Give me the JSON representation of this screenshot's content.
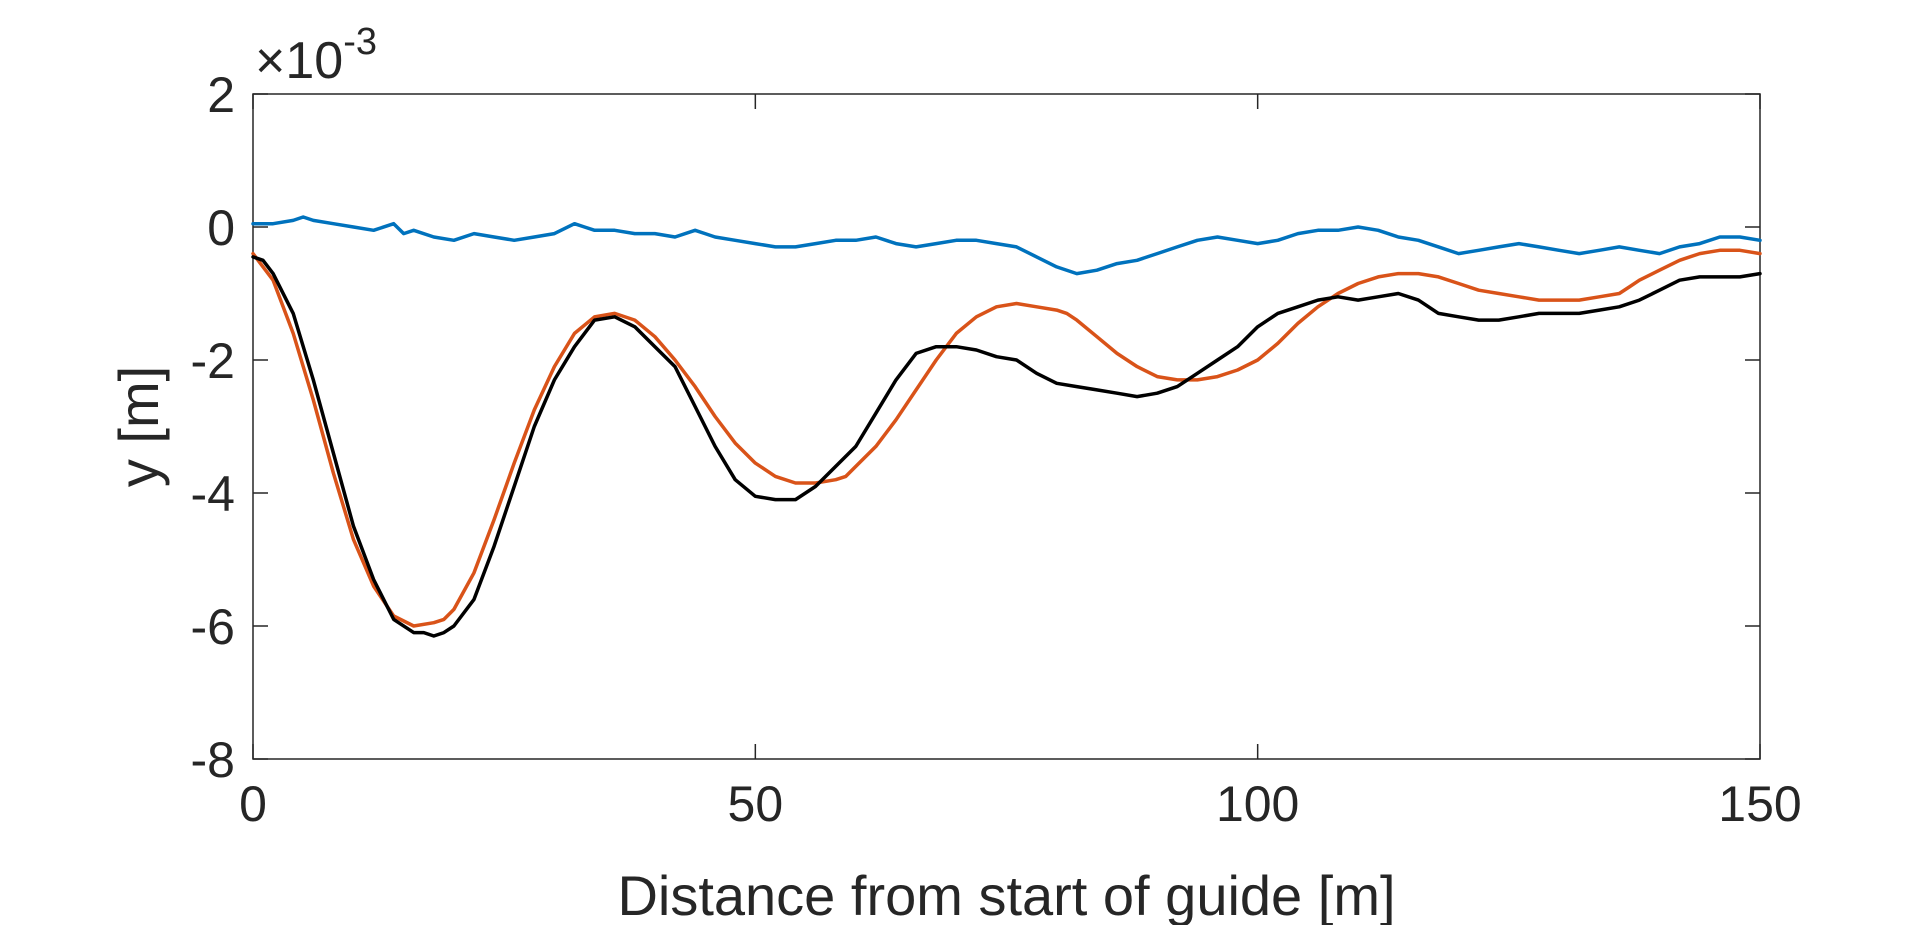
{
  "chart_data": {
    "type": "line",
    "xlabel": "Distance from start of guide [m]",
    "ylabel": "y [m]",
    "y_exponent_label": {
      "base": "×10",
      "exponent": "-3"
    },
    "xlim": [
      0,
      150
    ],
    "ylim": [
      -8,
      2
    ],
    "xticks": [
      "0",
      "50",
      "100",
      "150"
    ],
    "yticks": [
      "-8",
      "-6",
      "-4",
      "-2",
      "0",
      "2"
    ],
    "grid": false,
    "box": true,
    "series": [
      {
        "color": "#0072BD",
        "x": [
          0,
          2,
          4,
          5,
          6,
          8,
          10,
          12,
          14,
          15,
          16,
          18,
          20,
          22,
          24,
          26,
          28,
          30,
          32,
          33,
          34,
          36,
          38,
          40,
          42,
          44,
          45,
          46,
          48,
          50,
          52,
          54,
          56,
          58,
          60,
          62,
          64,
          66,
          68,
          70,
          72,
          74,
          76,
          78,
          80,
          82,
          84,
          86,
          88,
          90,
          92,
          94,
          96,
          98,
          100,
          102,
          104,
          106,
          108,
          110,
          112,
          114,
          116,
          118,
          120,
          122,
          124,
          126,
          128,
          130,
          132,
          134,
          136,
          138,
          140,
          142,
          144,
          146,
          148,
          150
        ],
        "y": [
          0.05,
          0.05,
          0.1,
          0.15,
          0.1,
          0.05,
          0.0,
          -0.05,
          0.05,
          -0.1,
          -0.05,
          -0.15,
          -0.2,
          -0.1,
          -0.15,
          -0.2,
          -0.15,
          -0.1,
          0.05,
          0.0,
          -0.05,
          -0.05,
          -0.1,
          -0.1,
          -0.15,
          -0.05,
          -0.1,
          -0.15,
          -0.2,
          -0.25,
          -0.3,
          -0.3,
          -0.25,
          -0.2,
          -0.2,
          -0.15,
          -0.25,
          -0.3,
          -0.25,
          -0.2,
          -0.2,
          -0.25,
          -0.3,
          -0.45,
          -0.6,
          -0.7,
          -0.65,
          -0.55,
          -0.5,
          -0.4,
          -0.3,
          -0.2,
          -0.15,
          -0.2,
          -0.25,
          -0.2,
          -0.1,
          -0.05,
          -0.05,
          0.0,
          -0.05,
          -0.15,
          -0.2,
          -0.3,
          -0.4,
          -0.35,
          -0.3,
          -0.25,
          -0.3,
          -0.35,
          -0.4,
          -0.35,
          -0.3,
          -0.35,
          -0.4,
          -0.3,
          -0.25,
          -0.15,
          -0.15,
          -0.2
        ]
      },
      {
        "color": "#D95319",
        "x": [
          0,
          2,
          4,
          6,
          8,
          10,
          12,
          14,
          16,
          18,
          19,
          20,
          22,
          24,
          26,
          28,
          30,
          32,
          34,
          36,
          38,
          40,
          42,
          44,
          46,
          48,
          50,
          52,
          54,
          56,
          58,
          59,
          60,
          62,
          64,
          66,
          68,
          70,
          72,
          74,
          76,
          78,
          80,
          81,
          82,
          84,
          86,
          88,
          90,
          92,
          94,
          96,
          98,
          100,
          102,
          104,
          106,
          108,
          110,
          112,
          114,
          116,
          118,
          120,
          122,
          124,
          126,
          128,
          130,
          132,
          134,
          136,
          137,
          138,
          140,
          142,
          144,
          146,
          148,
          150
        ],
        "y": [
          -0.4,
          -0.8,
          -1.6,
          -2.6,
          -3.7,
          -4.7,
          -5.4,
          -5.85,
          -6.0,
          -5.95,
          -5.9,
          -5.75,
          -5.2,
          -4.4,
          -3.55,
          -2.75,
          -2.1,
          -1.6,
          -1.35,
          -1.3,
          -1.4,
          -1.65,
          -2.0,
          -2.4,
          -2.85,
          -3.25,
          -3.55,
          -3.75,
          -3.85,
          -3.85,
          -3.8,
          -3.75,
          -3.6,
          -3.3,
          -2.9,
          -2.45,
          -2.0,
          -1.6,
          -1.35,
          -1.2,
          -1.15,
          -1.2,
          -1.25,
          -1.3,
          -1.4,
          -1.65,
          -1.9,
          -2.1,
          -2.25,
          -2.3,
          -2.3,
          -2.25,
          -2.15,
          -2.0,
          -1.75,
          -1.45,
          -1.2,
          -1.0,
          -0.85,
          -0.75,
          -0.7,
          -0.7,
          -0.75,
          -0.85,
          -0.95,
          -1.0,
          -1.05,
          -1.1,
          -1.1,
          -1.1,
          -1.05,
          -1.0,
          -0.9,
          -0.8,
          -0.65,
          -0.5,
          -0.4,
          -0.35,
          -0.35,
          -0.4
        ],
        "_note_unused": null
      },
      {
        "color": "#000000",
        "x": [
          0,
          1,
          2,
          4,
          6,
          8,
          10,
          12,
          14,
          16,
          17,
          18,
          19,
          20,
          22,
          24,
          26,
          28,
          30,
          32,
          34,
          36,
          38,
          40,
          42,
          44,
          46,
          48,
          50,
          52,
          54,
          56,
          58,
          60,
          62,
          64,
          66,
          68,
          70,
          72,
          74,
          76,
          78,
          80,
          82,
          84,
          86,
          88,
          90,
          92,
          94,
          96,
          98,
          100,
          102,
          104,
          106,
          108,
          110,
          112,
          114,
          116,
          118,
          120,
          122,
          124,
          126,
          128,
          130,
          132,
          134,
          136,
          138,
          140,
          142,
          144,
          146,
          148,
          150
        ],
        "y": [
          -0.45,
          -0.5,
          -0.7,
          -1.3,
          -2.3,
          -3.4,
          -4.5,
          -5.3,
          -5.9,
          -6.1,
          -6.1,
          -6.15,
          -6.1,
          -6.0,
          -5.6,
          -4.8,
          -3.9,
          -3.0,
          -2.3,
          -1.8,
          -1.4,
          -1.35,
          -1.5,
          -1.8,
          -2.1,
          -2.7,
          -3.3,
          -3.8,
          -4.05,
          -4.1,
          -4.1,
          -3.9,
          -3.6,
          -3.3,
          -2.8,
          -2.3,
          -1.9,
          -1.8,
          -1.8,
          -1.85,
          -1.95,
          -2.0,
          -2.2,
          -2.35,
          -2.4,
          -2.45,
          -2.5,
          -2.55,
          -2.5,
          -2.4,
          -2.2,
          -2.0,
          -1.8,
          -1.5,
          -1.3,
          -1.2,
          -1.1,
          -1.05,
          -1.1,
          -1.05,
          -1.0,
          -1.1,
          -1.3,
          -1.35,
          -1.4,
          -1.4,
          -1.35,
          -1.3,
          -1.3,
          -1.3,
          -1.25,
          -1.2,
          -1.1,
          -0.95,
          -0.8,
          -0.75,
          -0.75,
          -0.75,
          -0.7
        ]
      }
    ]
  }
}
